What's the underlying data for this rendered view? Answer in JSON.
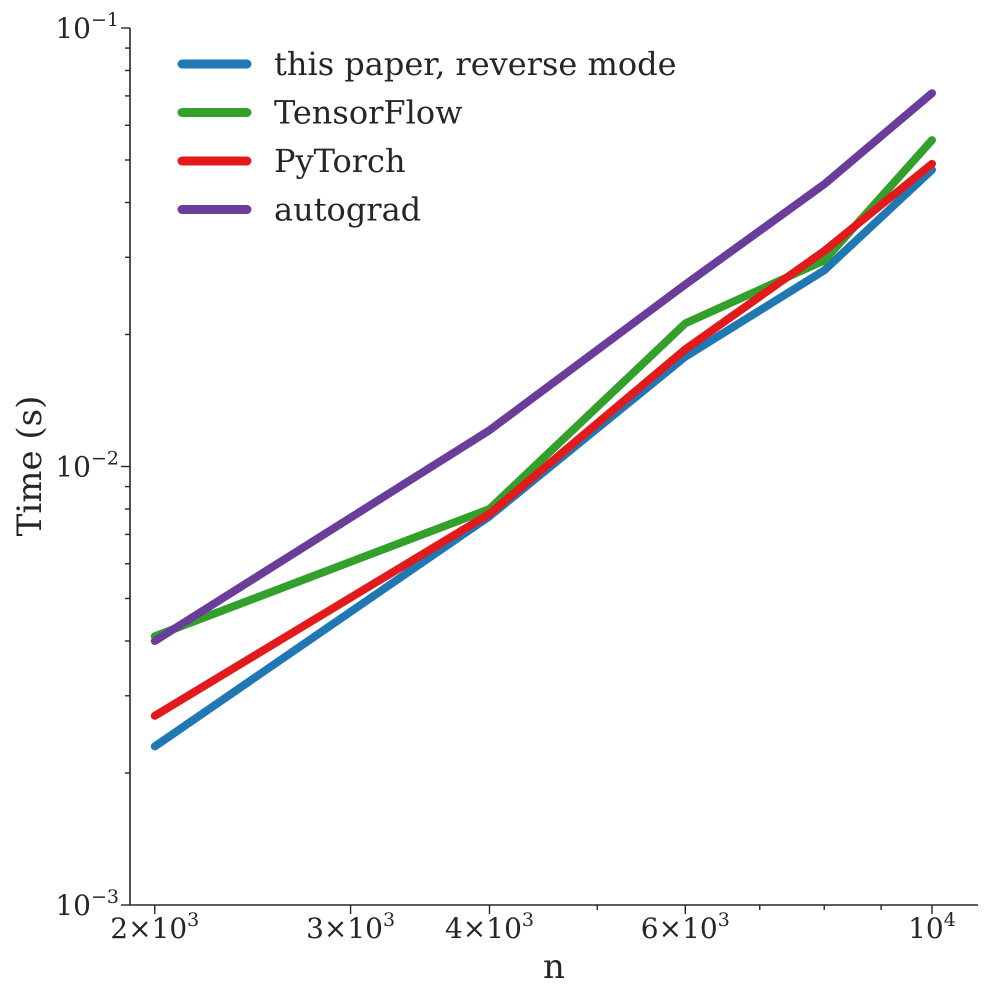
{
  "chart_data": {
    "type": "line",
    "xlabel": "n",
    "ylabel": "Time (s)",
    "xscale": "log",
    "yscale": "log",
    "xlim": [
      1900,
      11000
    ],
    "ylim": [
      0.001,
      0.1
    ],
    "grid": false,
    "legend_position": "top-left",
    "x_ticks": [
      {
        "value": 2000,
        "mantissa": "2",
        "exponent": "3"
      },
      {
        "value": 3000,
        "mantissa": "3",
        "exponent": "3"
      },
      {
        "value": 4000,
        "mantissa": "4",
        "exponent": "3"
      },
      {
        "value": 6000,
        "mantissa": "6",
        "exponent": "3"
      },
      {
        "value": 10000,
        "mantissa": "",
        "exponent": "4"
      }
    ],
    "y_ticks": [
      {
        "value": 0.001,
        "exponent": "−3"
      },
      {
        "value": 0.01,
        "exponent": "−2"
      },
      {
        "value": 0.1,
        "exponent": "−1"
      }
    ],
    "x": [
      2000,
      4000,
      6000,
      8000,
      10000
    ],
    "series": [
      {
        "name": "this paper, reverse mode",
        "color": "#1f77b4",
        "values": [
          0.0023,
          0.0077,
          0.0178,
          0.028,
          0.0475
        ]
      },
      {
        "name": "TensorFlow",
        "color": "#33a02c",
        "values": [
          0.0041,
          0.008,
          0.0212,
          0.0295,
          0.0555
        ]
      },
      {
        "name": "PyTorch",
        "color": "#e31a1c",
        "values": [
          0.0027,
          0.0078,
          0.0185,
          0.031,
          0.049
        ]
      },
      {
        "name": "autograd",
        "color": "#6a3d9a",
        "values": [
          0.004,
          0.0121,
          0.026,
          0.044,
          0.071
        ]
      }
    ]
  }
}
